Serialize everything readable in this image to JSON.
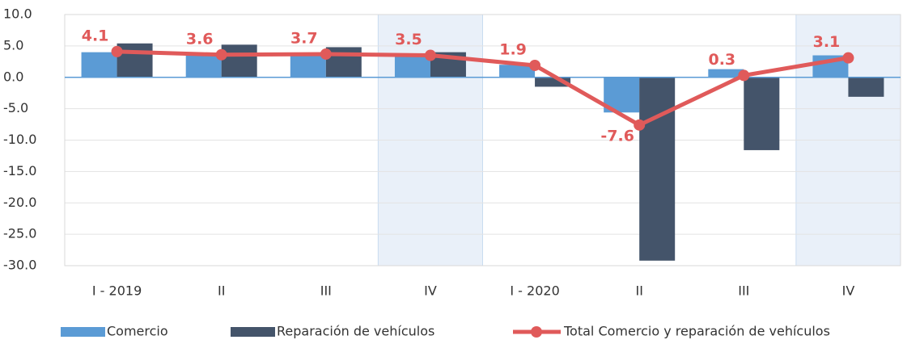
{
  "chart_data": {
    "type": "bar",
    "categories": [
      "I - 2019",
      "II",
      "III",
      "IV",
      "I - 2020",
      "II",
      "III",
      "IV"
    ],
    "shaded_categories": [
      3,
      7
    ],
    "series": [
      {
        "name": "Comercio",
        "type": "bar",
        "color": "#5b9bd5",
        "values": [
          4.0,
          3.6,
          3.5,
          3.4,
          2.0,
          -5.6,
          1.3,
          3.5
        ]
      },
      {
        "name": "Reparación de vehículos",
        "type": "bar",
        "color": "#44546a",
        "values": [
          5.4,
          5.2,
          4.8,
          4.0,
          -1.5,
          -29.2,
          -11.6,
          -3.1
        ]
      },
      {
        "name": "Total Comercio y reparación de vehículos",
        "type": "line",
        "color": "#e05a5a",
        "values": [
          4.1,
          3.6,
          3.7,
          3.5,
          1.9,
          -7.6,
          0.3,
          3.1
        ]
      }
    ],
    "ylim": [
      -30,
      10
    ],
    "yticks": [
      {
        "value": -30,
        "label": "-30.0"
      },
      {
        "value": -25,
        "label": "-25.0"
      },
      {
        "value": -20,
        "label": "-20.0"
      },
      {
        "value": -15,
        "label": "-15.0"
      },
      {
        "value": -10,
        "label": "-10.0"
      },
      {
        "value": -5,
        "label": "-5.0"
      },
      {
        "value": 0,
        "label": "0.0"
      },
      {
        "value": 5,
        "label": "5.0"
      },
      {
        "value": 10,
        "label": "10.0"
      }
    ],
    "grid": true
  }
}
